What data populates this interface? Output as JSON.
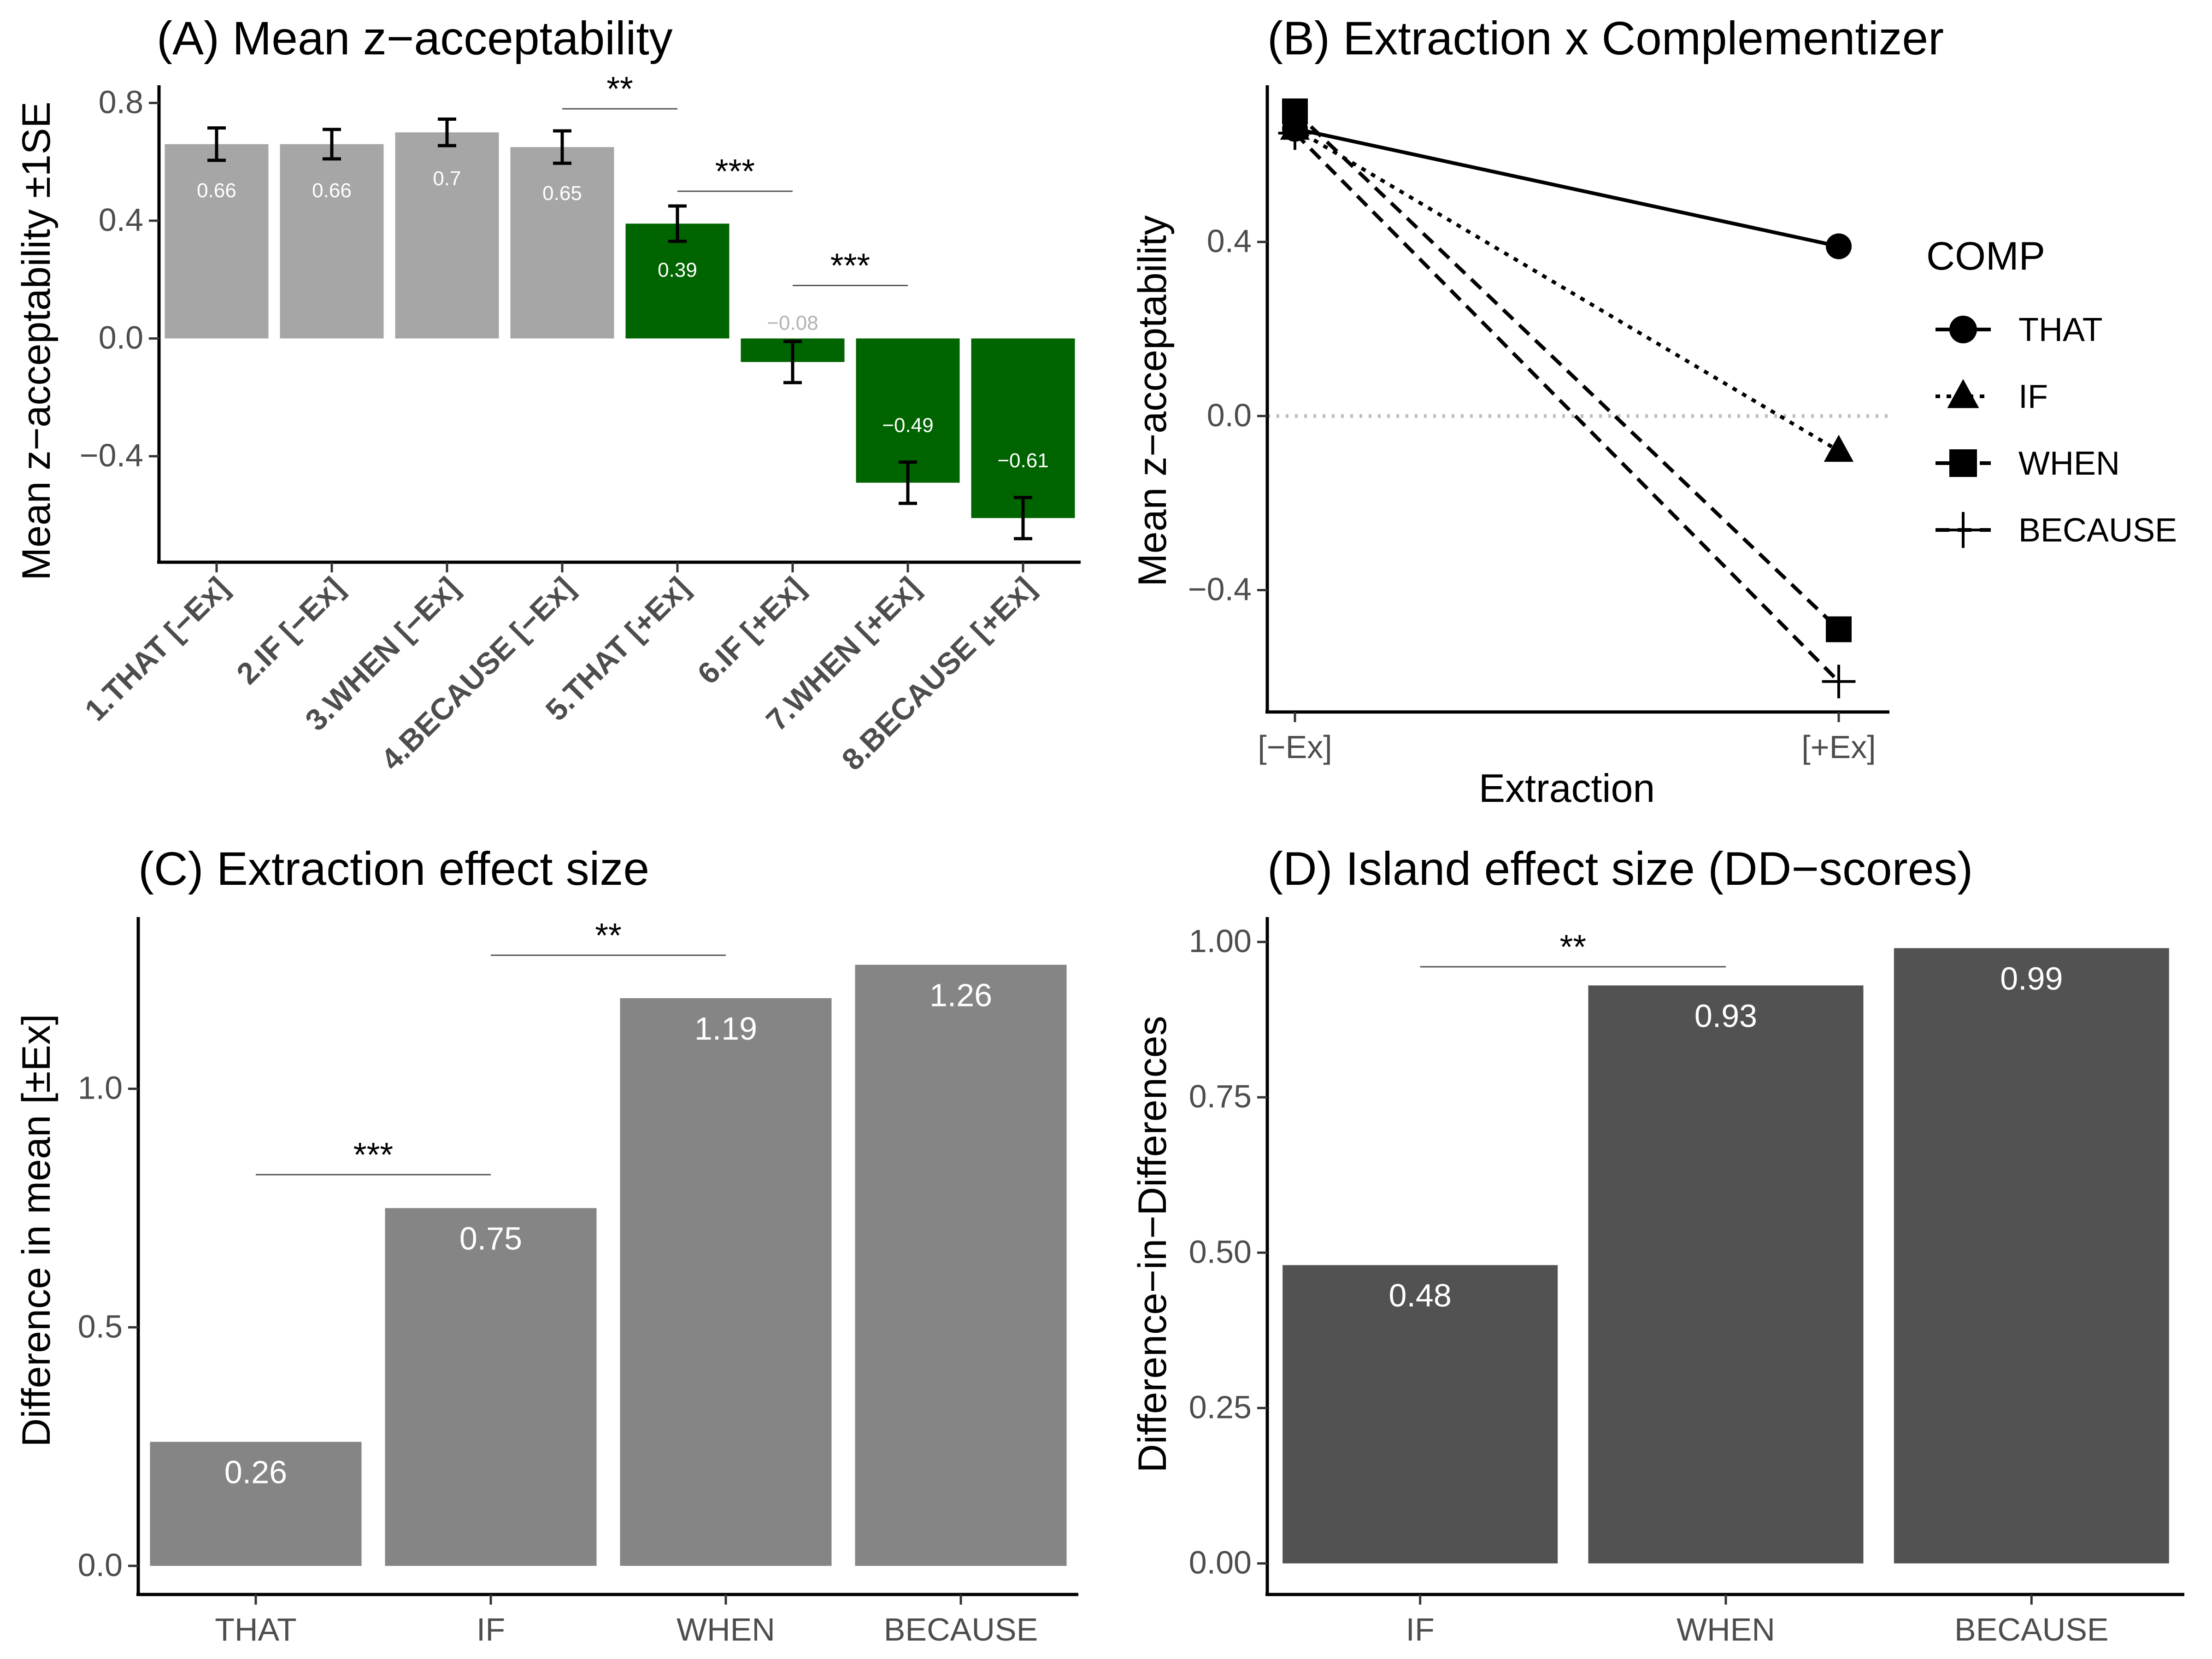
{
  "chart_data": [
    {
      "id": "A",
      "type": "bar",
      "title": "(A) Mean z−acceptability",
      "ylabel": "Mean z−acceptability ±1SE",
      "xlabel": "",
      "categories": [
        "1.THAT [−Ex]",
        "2.IF [−Ex]",
        "3.WHEN [−Ex]",
        "4.BECAUSE [−Ex]",
        "5.THAT [+Ex]",
        "6.IF [+Ex]",
        "7.WHEN [+Ex]",
        "8.BECAUSE [+Ex]"
      ],
      "values": [
        0.66,
        0.66,
        0.7,
        0.65,
        0.39,
        -0.08,
        -0.49,
        -0.61
      ],
      "errors": [
        0.055,
        0.05,
        0.045,
        0.055,
        0.06,
        0.07,
        0.07,
        0.07
      ],
      "labels": [
        "0.66",
        "0.66",
        "0.7",
        "0.65",
        "0.39",
        "−0.08",
        "−0.49",
        "−0.61"
      ],
      "groups": [
        "-Ex",
        "-Ex",
        "-Ex",
        "-Ex",
        "+Ex",
        "+Ex",
        "+Ex",
        "+Ex"
      ],
      "colors": {
        "-Ex": "#a6a6a6",
        "+Ex": "#006400"
      },
      "ylim": [
        -0.76,
        0.86
      ],
      "yticks": [
        -0.4,
        0.0,
        0.4,
        0.8
      ],
      "ytick_labels": [
        "−0.4",
        "0.0",
        "0.4",
        "0.8"
      ],
      "significance": [
        {
          "from": 3,
          "to": 4,
          "y": 0.78,
          "label": "**"
        },
        {
          "from": 4,
          "to": 5,
          "y": 0.5,
          "label": "***"
        },
        {
          "from": 5,
          "to": 6,
          "y": 0.18,
          "label": "***"
        }
      ]
    },
    {
      "id": "B",
      "type": "line",
      "title": "(B) Extraction x Complementizer",
      "ylabel": "Mean z−acceptability",
      "xlabel": "Extraction",
      "categories": [
        "[−Ex]",
        "[+Ex]"
      ],
      "series": [
        {
          "name": "THAT",
          "values": [
            0.66,
            0.39
          ],
          "marker": "circle",
          "dash": "solid"
        },
        {
          "name": "IF",
          "values": [
            0.66,
            -0.08
          ],
          "marker": "triangle",
          "dash": "dotted"
        },
        {
          "name": "WHEN",
          "values": [
            0.7,
            -0.49
          ],
          "marker": "square",
          "dash": "dashed"
        },
        {
          "name": "BECAUSE",
          "values": [
            0.65,
            -0.61
          ],
          "marker": "plus",
          "dash": "dashed"
        }
      ],
      "reference_line": 0.0,
      "ylim": [
        -0.68,
        0.76
      ],
      "yticks": [
        -0.4,
        0.0,
        0.4
      ],
      "ytick_labels": [
        "−0.4",
        "0.0",
        "0.4"
      ],
      "legend_title": "COMP",
      "legend_position": "right"
    },
    {
      "id": "C",
      "type": "bar",
      "title": "(C) Extraction effect size",
      "ylabel": "Difference in mean [±Ex]",
      "xlabel": "",
      "categories": [
        "THAT",
        "IF",
        "WHEN",
        "BECAUSE"
      ],
      "values": [
        0.26,
        0.75,
        1.19,
        1.26
      ],
      "labels": [
        "0.26",
        "0.75",
        "1.19",
        "1.26"
      ],
      "color": "#858585",
      "ylim": [
        -0.06,
        1.36
      ],
      "yticks": [
        0.0,
        0.5,
        1.0
      ],
      "ytick_labels": [
        "0.0",
        "0.5",
        "1.0"
      ],
      "significance": [
        {
          "from": 0,
          "to": 1,
          "y": 0.82,
          "label": "***"
        },
        {
          "from": 1,
          "to": 2,
          "y": 1.28,
          "label": "**"
        }
      ]
    },
    {
      "id": "D",
      "type": "bar",
      "title": "(D) Island effect size (DD−scores)",
      "ylabel": "Difference−in−Differences",
      "xlabel": "",
      "categories": [
        "IF",
        "WHEN",
        "BECAUSE"
      ],
      "values": [
        0.48,
        0.93,
        0.99
      ],
      "labels": [
        "0.48",
        "0.93",
        "0.99"
      ],
      "color": "#525252",
      "ylim": [
        -0.05,
        1.04
      ],
      "yticks": [
        0.0,
        0.25,
        0.5,
        0.75,
        1.0
      ],
      "ytick_labels": [
        "0.00",
        "0.25",
        "0.50",
        "0.75",
        "1.00"
      ],
      "significance": [
        {
          "from": 0,
          "to": 1,
          "y": 0.96,
          "label": "**"
        }
      ]
    }
  ]
}
